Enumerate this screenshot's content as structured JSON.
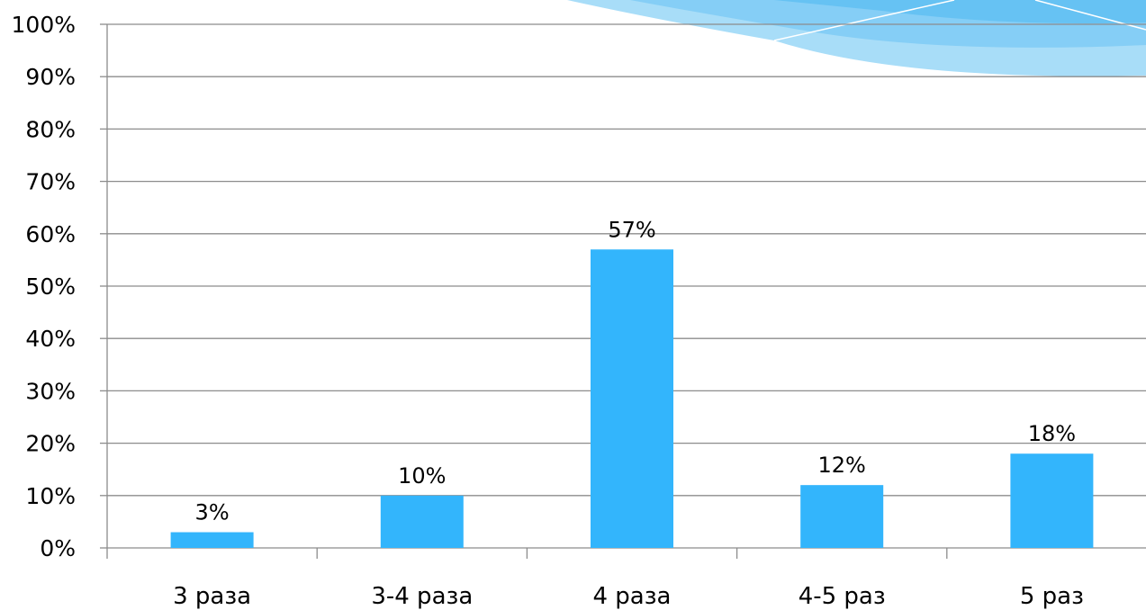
{
  "chart_data": {
    "type": "bar",
    "categories": [
      "3 раза",
      "3-4 раза",
      "4 раза",
      "4-5 раз",
      "5 раз"
    ],
    "values": [
      3,
      10,
      57,
      12,
      18
    ],
    "data_labels": [
      "3%",
      "10%",
      "57%",
      "12%",
      "18%"
    ],
    "y_ticks": [
      "0%",
      "10%",
      "20%",
      "30%",
      "40%",
      "50%",
      "60%",
      "70%",
      "80%",
      "90%",
      "100%"
    ],
    "ylim": [
      0,
      100
    ],
    "grid": true,
    "legend": "none",
    "title": "",
    "xlabel": "",
    "ylabel": ""
  },
  "colors": {
    "bar": "#33B5FC",
    "grid": "#8C8C8C",
    "decoration": "#8FD3F8"
  }
}
